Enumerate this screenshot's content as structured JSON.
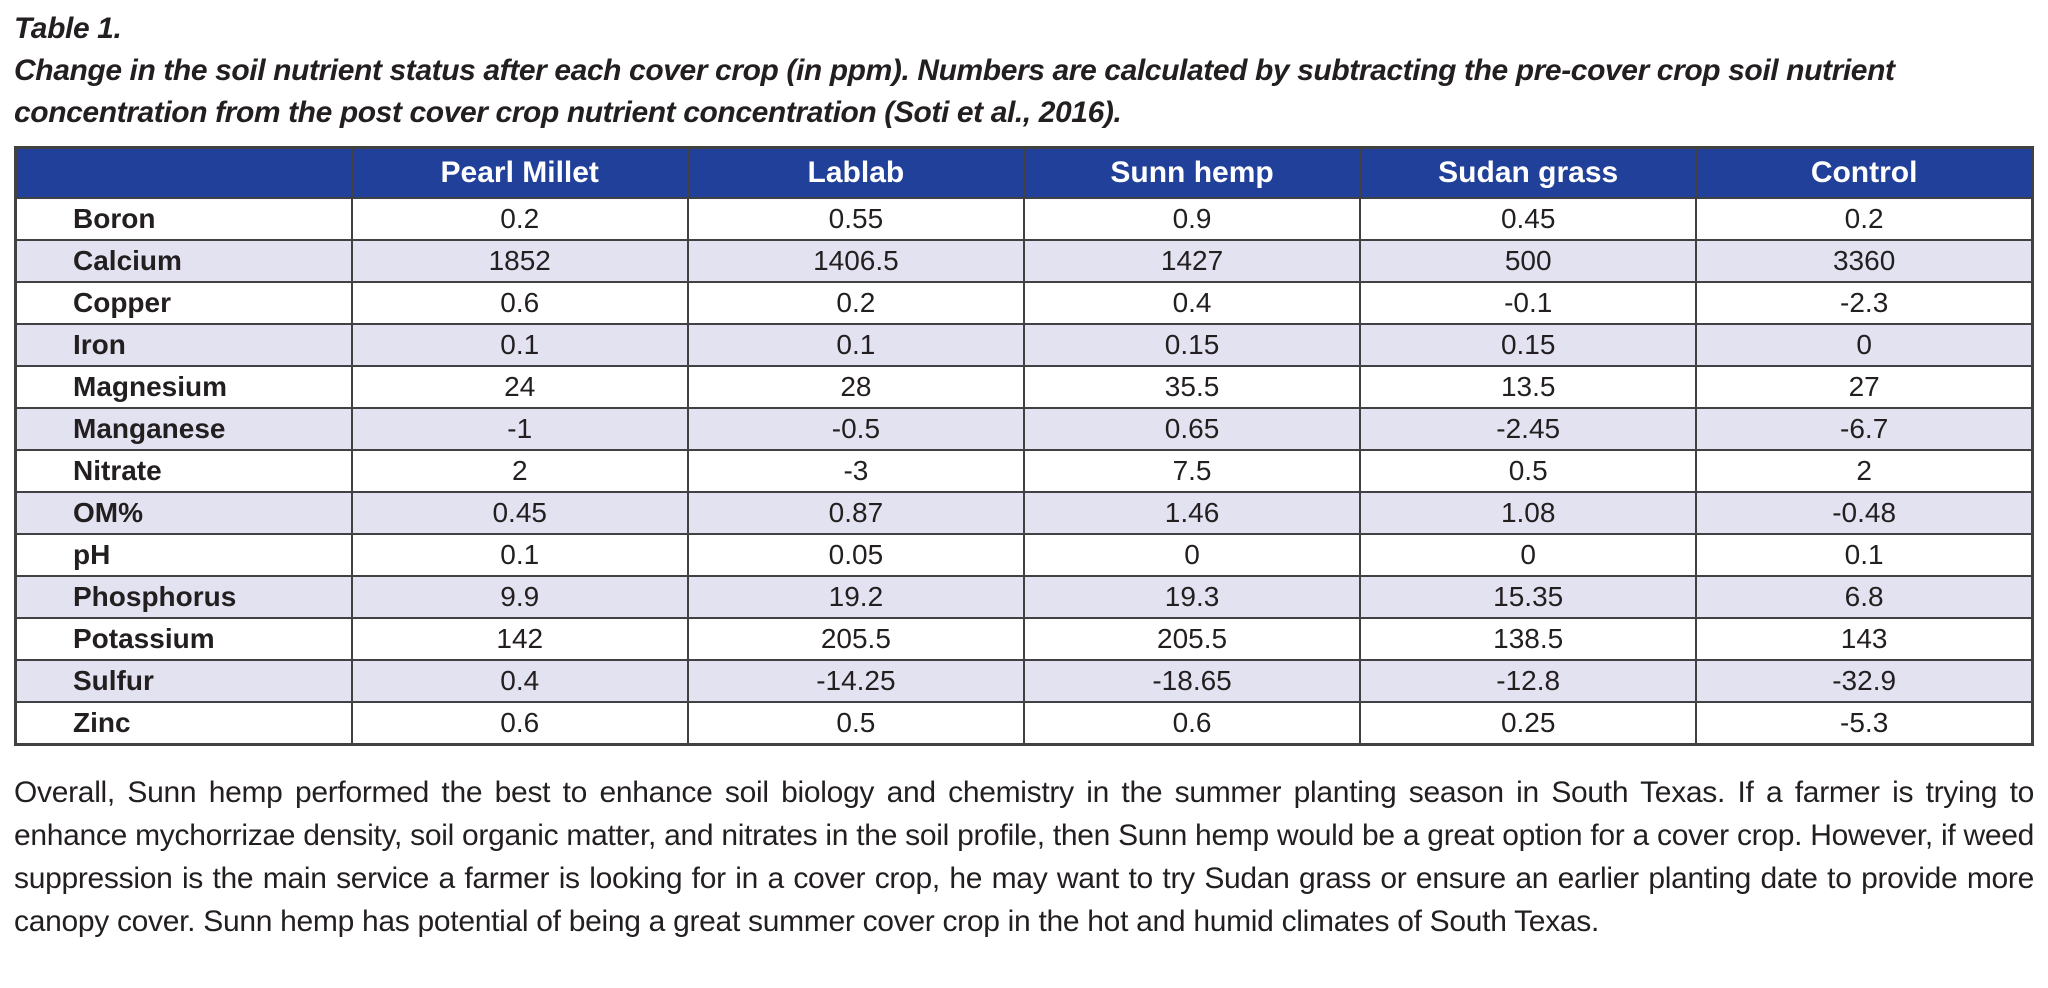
{
  "title": "Table 1.",
  "caption": "Change in the soil nutrient status after each cover crop (in ppm). Numbers are calculated by subtracting the pre-cover crop soil nutrient concentration from the post cover crop nutrient concentration (Soti et al., 2016).",
  "table": {
    "columns": [
      "",
      "Pearl Millet",
      "Lablab",
      "Sunn hemp",
      "Sudan grass",
      "Control"
    ],
    "rows": [
      {
        "label": "Boron",
        "values": [
          "0.2",
          "0.55",
          "0.9",
          "0.45",
          "0.2"
        ]
      },
      {
        "label": "Calcium",
        "values": [
          "1852",
          "1406.5",
          "1427",
          "500",
          "3360"
        ]
      },
      {
        "label": "Copper",
        "values": [
          "0.6",
          "0.2",
          "0.4",
          "-0.1",
          "-2.3"
        ]
      },
      {
        "label": "Iron",
        "values": [
          "0.1",
          "0.1",
          "0.15",
          "0.15",
          "0"
        ]
      },
      {
        "label": "Magnesium",
        "values": [
          "24",
          "28",
          "35.5",
          "13.5",
          "27"
        ]
      },
      {
        "label": "Manganese",
        "values": [
          "-1",
          "-0.5",
          "0.65",
          "-2.45",
          "-6.7"
        ]
      },
      {
        "label": "Nitrate",
        "values": [
          "2",
          "-3",
          "7.5",
          "0.5",
          "2"
        ]
      },
      {
        "label": "OM%",
        "values": [
          "0.45",
          "0.87",
          "1.46",
          "1.08",
          "-0.48"
        ]
      },
      {
        "label": "pH",
        "values": [
          "0.1",
          "0.05",
          "0",
          "0",
          "0.1"
        ]
      },
      {
        "label": "Phosphorus",
        "values": [
          "9.9",
          "19.2",
          "19.3",
          "15.35",
          "6.8"
        ]
      },
      {
        "label": "Potassium",
        "values": [
          "142",
          "205.5",
          "205.5",
          "138.5",
          "143"
        ]
      },
      {
        "label": "Sulfur",
        "values": [
          "0.4",
          "-14.25",
          "-18.65",
          "-12.8",
          "-32.9"
        ]
      },
      {
        "label": "Zinc",
        "values": [
          "0.6",
          "0.5",
          "0.6",
          "0.25",
          "-5.3"
        ]
      }
    ]
  },
  "paragraph": "Overall, Sunn hemp performed the best to enhance soil biology and chemistry in the summer planting season in South Texas. If a farmer is trying to enhance mychorrizae density, soil organic matter, and nitrates in the soil profile, then Sunn hemp would be a great option for a cover crop. However, if weed suppression is the main service a farmer is looking for in a cover crop, he may want to try Sudan grass or ensure an earlier planting date to provide more canopy cover. Sunn hemp has potential of being a great summer cover crop in the hot and humid climates of South Texas.",
  "colors": {
    "header_bg": "#21409A",
    "header_text": "#FFFFFF",
    "row_alt_bg": "#E3E2F1",
    "border": "#414042",
    "text": "#231F20"
  }
}
